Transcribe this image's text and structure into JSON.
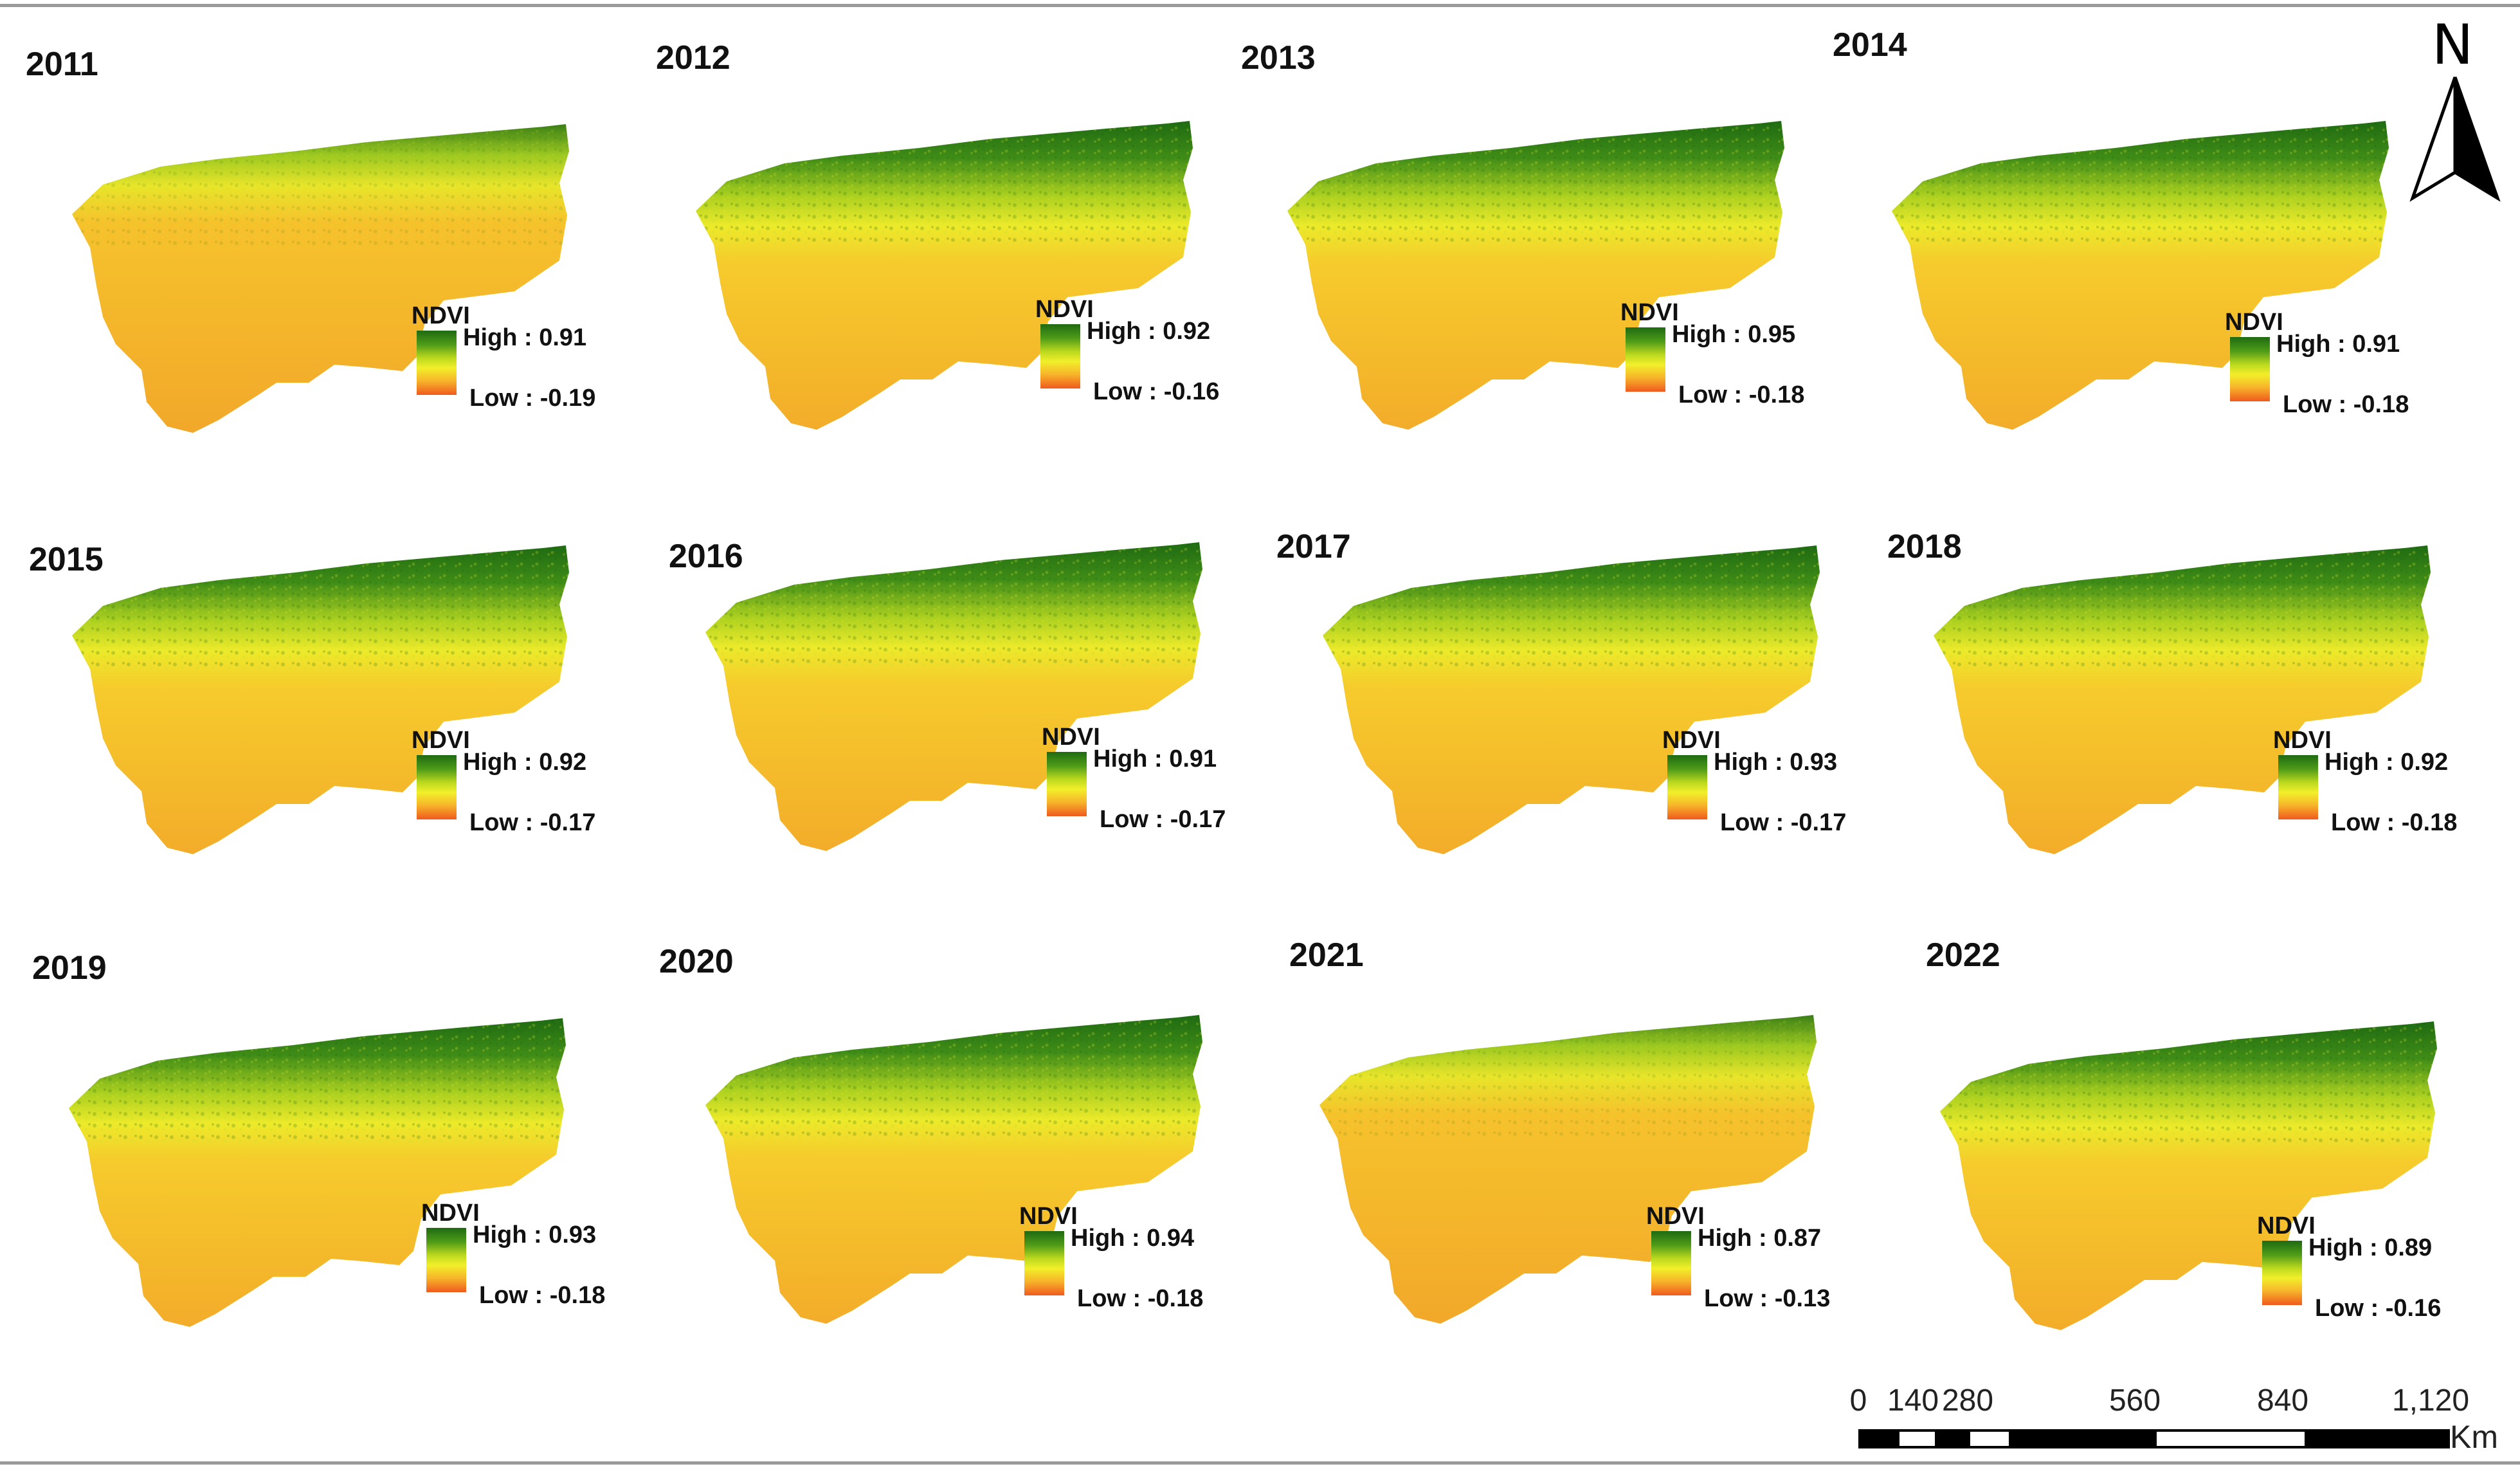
{
  "panels": [
    {
      "year": "2011",
      "legend_title": "NDVI",
      "high": "High : 0.91",
      "low": "Low : -0.19"
    },
    {
      "year": "2012",
      "legend_title": "NDVI",
      "high": "High : 0.92",
      "low": "Low : -0.16"
    },
    {
      "year": "2013",
      "legend_title": "NDVI",
      "high": "High : 0.95",
      "low": "Low : -0.18"
    },
    {
      "year": "2014",
      "legend_title": "NDVI",
      "high": "High : 0.91",
      "low": "Low : -0.18"
    },
    {
      "year": "2015",
      "legend_title": "NDVI",
      "high": "High : 0.92",
      "low": "Low : -0.17"
    },
    {
      "year": "2016",
      "legend_title": "NDVI",
      "high": "High : 0.91",
      "low": "Low : -0.17"
    },
    {
      "year": "2017",
      "legend_title": "NDVI",
      "high": "High : 0.93",
      "low": "Low : -0.17"
    },
    {
      "year": "2018",
      "legend_title": "NDVI",
      "high": "High : 0.92",
      "low": "Low : -0.18"
    },
    {
      "year": "2019",
      "legend_title": "NDVI",
      "high": "High : 0.93",
      "low": "Low : -0.18"
    },
    {
      "year": "2020",
      "legend_title": "NDVI",
      "high": "High : 0.94",
      "low": "Low : -0.18"
    },
    {
      "year": "2021",
      "legend_title": "NDVI",
      "high": "High : 0.87",
      "low": "Low : -0.13"
    },
    {
      "year": "2022",
      "legend_title": "NDVI",
      "high": "High : 0.89",
      "low": "Low : -0.16"
    }
  ],
  "north_arrow": {
    "letter": "N",
    "icon": "north-arrow-icon"
  },
  "scale_bar": {
    "ticks": [
      "0",
      "140",
      "280",
      "560",
      "840",
      "1,120"
    ],
    "unit": "Km"
  },
  "colors": {
    "ndvi_high": "#1e6a12",
    "ndvi_mid": "#f2ef2a",
    "ndvi_low": "#f05a1e",
    "land_base": "#f4b32c"
  }
}
